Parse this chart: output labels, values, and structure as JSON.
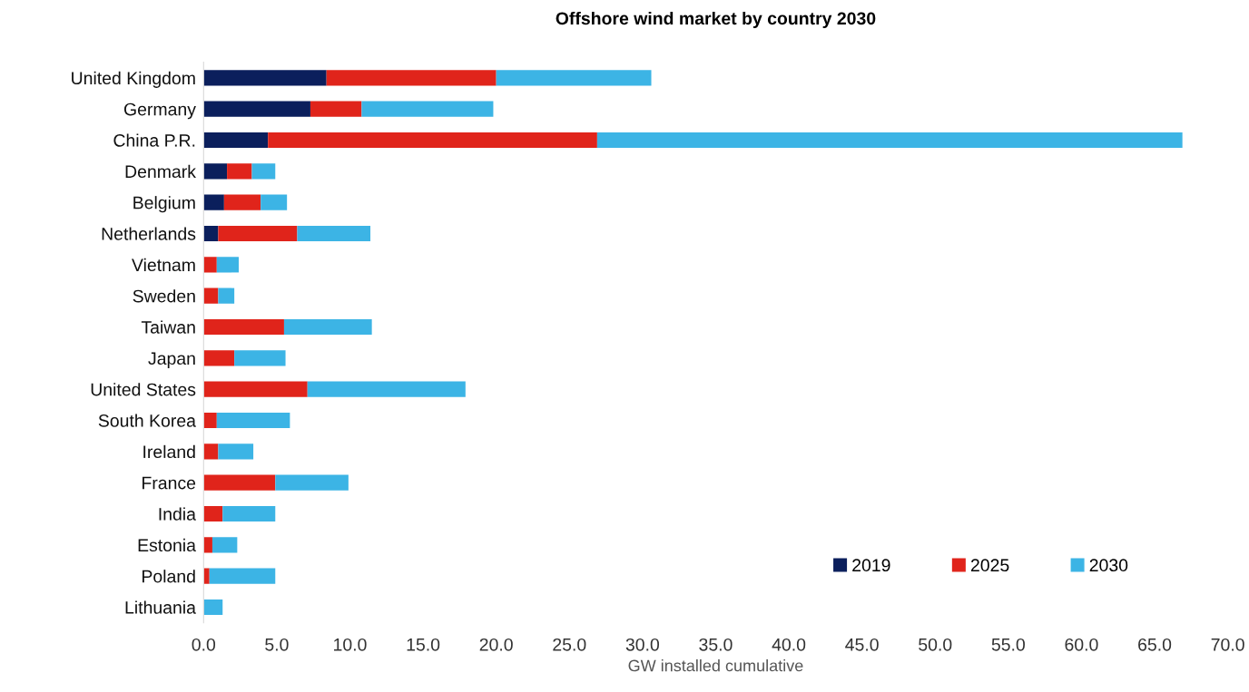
{
  "chart_data": {
    "type": "bar",
    "orientation": "horizontal",
    "stacked": true,
    "title": "Offshore wind market by country 2030",
    "xlabel": "GW installed cumulative",
    "categories": [
      "United Kingdom",
      "Germany",
      "China P.R.",
      "Denmark",
      "Belgium",
      "Netherlands",
      "Vietnam",
      "Sweden",
      "Taiwan",
      "Japan",
      "United States",
      "South Korea",
      "Ireland",
      "France",
      "India",
      "Estonia",
      "Poland",
      "Lithuania"
    ],
    "series": [
      {
        "name": "2019",
        "color": "#0b1f5c",
        "values": [
          8.4,
          7.3,
          4.4,
          1.6,
          1.4,
          1.0,
          0,
          0,
          0,
          0,
          0,
          0,
          0,
          0,
          0,
          0,
          0,
          0
        ]
      },
      {
        "name": "2025",
        "color": "#e0241b",
        "values": [
          11.6,
          3.5,
          22.5,
          1.7,
          2.5,
          5.4,
          0.9,
          1.0,
          5.5,
          2.1,
          7.1,
          0.9,
          1.0,
          4.9,
          1.3,
          0.6,
          0.4,
          0
        ]
      },
      {
        "name": "2030",
        "color": "#3cb4e5",
        "values": [
          10.6,
          9.0,
          40.0,
          1.6,
          1.8,
          5.0,
          1.5,
          1.1,
          6.0,
          3.5,
          10.8,
          5.0,
          2.4,
          5.0,
          3.6,
          1.7,
          4.5,
          1.3
        ]
      }
    ],
    "xlim": [
      0,
      70
    ],
    "xticks": [
      {
        "value": 0,
        "label": "0.0"
      },
      {
        "value": 5,
        "label": "5.0"
      },
      {
        "value": 10,
        "label": "10.0"
      },
      {
        "value": 15,
        "label": "15.0"
      },
      {
        "value": 20,
        "label": "20.0"
      },
      {
        "value": 25,
        "label": "25.0"
      },
      {
        "value": 30,
        "label": "30.0"
      },
      {
        "value": 35,
        "label": "35.0"
      },
      {
        "value": 40,
        "label": "40.0"
      },
      {
        "value": 45,
        "label": "45.0"
      },
      {
        "value": 50,
        "label": "50.0"
      },
      {
        "value": 55,
        "label": "55.0"
      },
      {
        "value": 60,
        "label": "60.0"
      },
      {
        "value": 65,
        "label": "65.0"
      },
      {
        "value": 70,
        "label": "70.0"
      }
    ],
    "grid": false,
    "legend": "bottom right"
  }
}
